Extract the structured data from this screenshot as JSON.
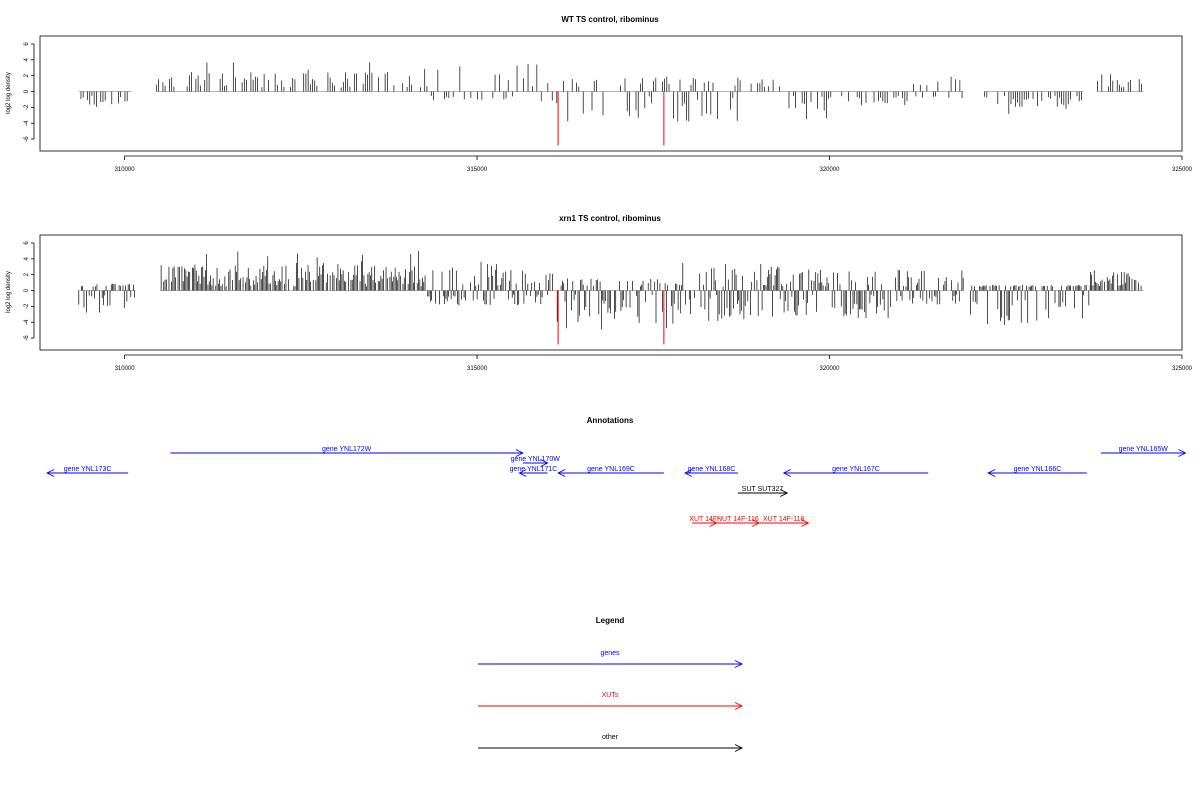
{
  "colors": {
    "genes": "#0000ff",
    "xuts": "#ff0000",
    "other": "#000000",
    "highlight": "#ff0000",
    "bars": "#000000",
    "baseline": "#888888"
  },
  "panels": {
    "wt": {
      "title": "WT TS control, ribominus",
      "ylabel": "log2 log density"
    },
    "xrn1": {
      "title": "xrn1 TS control, ribominus",
      "ylabel": "log2 log density"
    }
  },
  "annotations_title": "Annotations",
  "legend": {
    "title": "Legend",
    "items": [
      {
        "label": "genes",
        "color": "#0000ff"
      },
      {
        "label": "XUTs",
        "color": "#ff0000"
      },
      {
        "label": "other",
        "color": "#000000"
      }
    ]
  },
  "chart_data": [
    {
      "type": "bar",
      "id": "wt",
      "title": "WT TS control, ribominus",
      "ylabel": "log2 log density",
      "xlim": [
        308800,
        325000
      ],
      "ylim": [
        -7,
        6.5
      ],
      "xticks": [
        310000,
        315000,
        320000,
        325000
      ],
      "yticks": [
        -6,
        -4,
        -2,
        0,
        2,
        4,
        6
      ],
      "highlight_positions": [
        316150,
        317650
      ],
      "highlight_value": -6.8,
      "segments": [
        {
          "start": 309350,
          "end": 310100,
          "min": -2.5,
          "max": 0.3
        },
        {
          "start": 310450,
          "end": 314350,
          "min": -0.3,
          "max": 3.8
        },
        {
          "start": 314350,
          "end": 316100,
          "min": -1.5,
          "max": 4.9
        },
        {
          "start": 316100,
          "end": 318700,
          "min": -5.2,
          "max": 2.5
        },
        {
          "start": 318700,
          "end": 319300,
          "min": -0.3,
          "max": 2.2
        },
        {
          "start": 319300,
          "end": 320600,
          "min": -3.8,
          "max": 0.2
        },
        {
          "start": 320600,
          "end": 321100,
          "min": -2.5,
          "max": 0.2
        },
        {
          "start": 321100,
          "end": 321900,
          "min": -1.0,
          "max": 3.0
        },
        {
          "start": 322200,
          "end": 323600,
          "min": -2.9,
          "max": 0.2
        },
        {
          "start": 323800,
          "end": 324450,
          "min": -0.2,
          "max": 2.5
        }
      ]
    },
    {
      "type": "bar",
      "id": "xrn1",
      "title": "xrn1 TS control, ribominus",
      "ylabel": "log2 log density",
      "xlim": [
        308800,
        325000
      ],
      "ylim": [
        -7,
        6.5
      ],
      "xticks": [
        310000,
        315000,
        320000,
        325000
      ],
      "yticks": [
        -6,
        -4,
        -2,
        0,
        2,
        4,
        6
      ],
      "highlight_positions": [
        316150,
        317650
      ],
      "highlight_value": -6.8,
      "segments": [
        {
          "start": 309350,
          "end": 310150,
          "min": -3.8,
          "max": 1.0
        },
        {
          "start": 310500,
          "end": 314300,
          "min": -0.5,
          "max": 5.0
        },
        {
          "start": 314300,
          "end": 316100,
          "min": -2.5,
          "max": 5.8
        },
        {
          "start": 316100,
          "end": 317900,
          "min": -6.8,
          "max": 2.0
        },
        {
          "start": 317900,
          "end": 319300,
          "min": -5.5,
          "max": 5.0
        },
        {
          "start": 319300,
          "end": 320900,
          "min": -4.8,
          "max": 3.8
        },
        {
          "start": 320900,
          "end": 321900,
          "min": -2.3,
          "max": 3.6
        },
        {
          "start": 322000,
          "end": 323700,
          "min": -6.3,
          "max": 0.8
        },
        {
          "start": 323700,
          "end": 324450,
          "min": -0.3,
          "max": 3.6
        }
      ]
    }
  ],
  "annotations": [
    {
      "label": "gene YNL173C",
      "start": 310050,
      "end": 308900,
      "row": 2,
      "color": "#0000ff"
    },
    {
      "label": "gene YNL172W",
      "start": 310650,
      "end": 315650,
      "row": 0,
      "color": "#0000ff"
    },
    {
      "label": "gene YNL170W",
      "start": 315650,
      "end": 316000,
      "row": 1,
      "color": "#0000ff"
    },
    {
      "label": "gene YNL171C",
      "start": 316000,
      "end": 315600,
      "row": 2,
      "color": "#0000ff"
    },
    {
      "label": "gene YNL169C",
      "start": 317650,
      "end": 316150,
      "row": 2,
      "color": "#0000ff"
    },
    {
      "label": "gene YNL168C",
      "start": 318700,
      "end": 317950,
      "row": 2,
      "color": "#0000ff"
    },
    {
      "label": "gene YNL167C",
      "start": 321400,
      "end": 319350,
      "row": 2,
      "color": "#0000ff"
    },
    {
      "label": "gene YNL166C",
      "start": 323650,
      "end": 322250,
      "row": 2,
      "color": "#0000ff"
    },
    {
      "label": "gene YNL165W",
      "start": 323850,
      "end": 325050,
      "row": 0,
      "color": "#0000ff"
    },
    {
      "label": "SUT SUT327",
      "start": 318700,
      "end": 319400,
      "row": 4,
      "color": "#000000"
    },
    {
      "label": "XUT 14F-",
      "start": 318050,
      "end": 318400,
      "row": 7,
      "color": "#ff0000"
    },
    {
      "label": "NUT 14F-116",
      "start": 318400,
      "end": 319000,
      "row": 7,
      "color": "#ff0000"
    },
    {
      "label": "XUT 14F-118",
      "start": 319000,
      "end": 319700,
      "row": 7,
      "color": "#ff0000"
    }
  ]
}
